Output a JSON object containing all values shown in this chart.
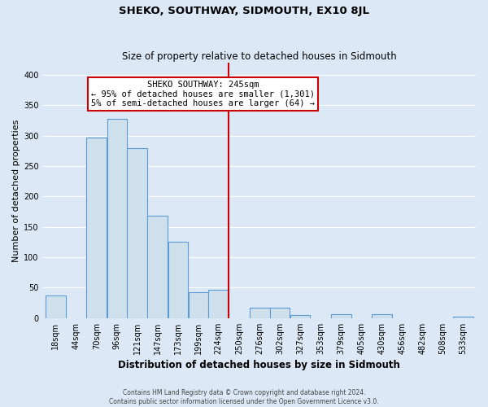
{
  "title": "SHEKO, SOUTHWAY, SIDMOUTH, EX10 8JL",
  "subtitle": "Size of property relative to detached houses in Sidmouth",
  "xlabel": "Distribution of detached houses by size in Sidmouth",
  "ylabel": "Number of detached properties",
  "footer_line1": "Contains HM Land Registry data © Crown copyright and database right 2024.",
  "footer_line2": "Contains public sector information licensed under the Open Government Licence v3.0.",
  "bin_labels": [
    "18sqm",
    "44sqm",
    "70sqm",
    "96sqm",
    "121sqm",
    "147sqm",
    "173sqm",
    "199sqm",
    "224sqm",
    "250sqm",
    "276sqm",
    "302sqm",
    "327sqm",
    "353sqm",
    "379sqm",
    "405sqm",
    "430sqm",
    "456sqm",
    "482sqm",
    "508sqm",
    "533sqm"
  ],
  "bar_heights": [
    37,
    0,
    297,
    328,
    280,
    168,
    125,
    43,
    46,
    0,
    17,
    17,
    5,
    0,
    6,
    0,
    6,
    0,
    0,
    0,
    2
  ],
  "bar_color": "#cfe0ed",
  "bar_edge_color": "#5b9bd5",
  "ylim": [
    0,
    420
  ],
  "yticks": [
    0,
    50,
    100,
    150,
    200,
    250,
    300,
    350,
    400
  ],
  "property_size_label": "SHEKO SOUTHWAY: 245sqm",
  "annotation_line1": "← 95% of detached houses are smaller (1,301)",
  "annotation_line2": "5% of semi-detached houses are larger (64) →",
  "vline_bin_index": 9,
  "vline_color": "#cc0000",
  "annotation_box_facecolor": "#ffffff",
  "annotation_box_edgecolor": "#cc0000",
  "figure_bg": "#dce8f5",
  "axes_bg": "#dce8f5",
  "grid_color": "#ffffff",
  "bin_edges": [
    18,
    44,
    70,
    96,
    121,
    147,
    173,
    199,
    224,
    250,
    276,
    302,
    327,
    353,
    379,
    405,
    430,
    456,
    482,
    508,
    533,
    559
  ]
}
